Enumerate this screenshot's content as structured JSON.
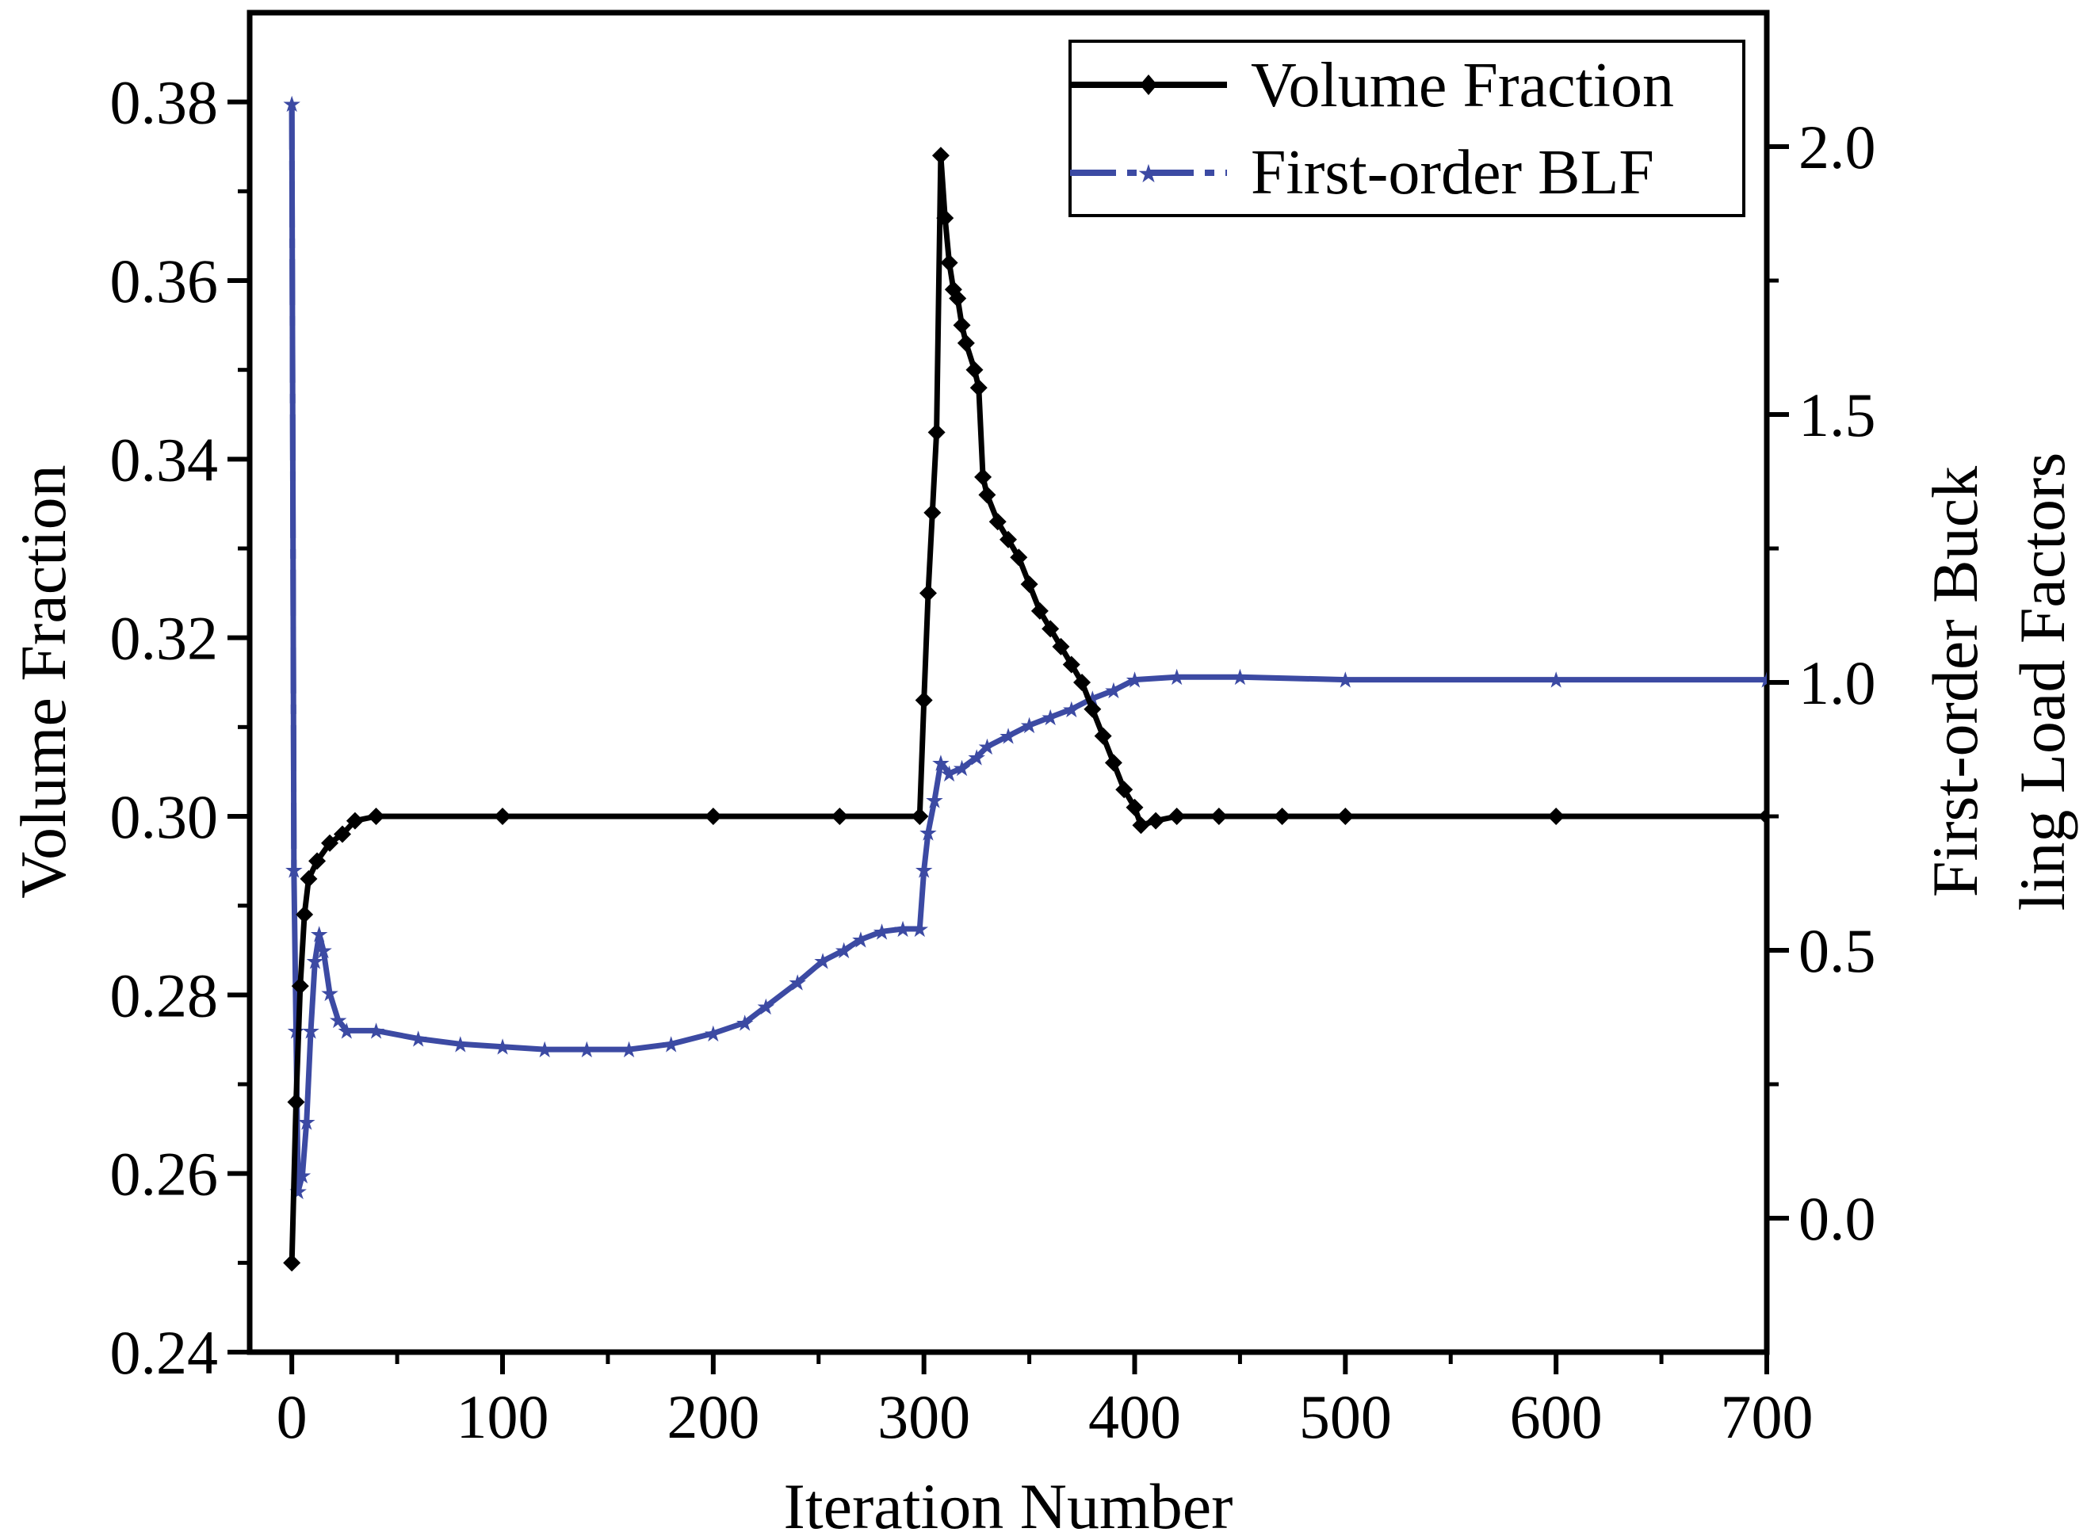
{
  "chart_data": {
    "type": "line",
    "title": "",
    "xlabel": "Iteration Number",
    "ylabel_left": "Volume Fraction",
    "ylabel_right": [
      "First-order Buck",
      "ling Load Factors"
    ],
    "xlim": [
      -20,
      700
    ],
    "ylim_left": [
      0.24,
      0.39
    ],
    "ylim_right": [
      -0.25,
      2.25
    ],
    "x_ticks": [
      0,
      100,
      200,
      300,
      400,
      500,
      600,
      700
    ],
    "y_left_ticks": [
      "0.24",
      "0.26",
      "0.28",
      "0.30",
      "0.32",
      "0.34",
      "0.36",
      "0.38"
    ],
    "y_right_ticks": [
      "0.0",
      "0.5",
      "1.0",
      "1.5",
      "2.0"
    ],
    "legend_position": "top-right",
    "series": [
      {
        "name": "Volume Fraction",
        "axis": "left",
        "color": "#000000",
        "marker": "diamond",
        "line_style": "solid",
        "points": [
          [
            0,
            0.25
          ],
          [
            2,
            0.268
          ],
          [
            4,
            0.281
          ],
          [
            6,
            0.289
          ],
          [
            8,
            0.293
          ],
          [
            12,
            0.295
          ],
          [
            18,
            0.297
          ],
          [
            24,
            0.298
          ],
          [
            30,
            0.2995
          ],
          [
            40,
            0.3
          ],
          [
            100,
            0.3
          ],
          [
            200,
            0.3
          ],
          [
            260,
            0.3
          ],
          [
            298,
            0.3
          ],
          [
            300,
            0.313
          ],
          [
            302,
            0.325
          ],
          [
            304,
            0.334
          ],
          [
            306,
            0.343
          ],
          [
            308,
            0.374
          ],
          [
            310,
            0.367
          ],
          [
            312,
            0.362
          ],
          [
            314,
            0.359
          ],
          [
            316,
            0.358
          ],
          [
            318,
            0.355
          ],
          [
            320,
            0.353
          ],
          [
            324,
            0.35
          ],
          [
            326,
            0.348
          ],
          [
            328,
            0.338
          ],
          [
            330,
            0.336
          ],
          [
            335,
            0.333
          ],
          [
            340,
            0.331
          ],
          [
            345,
            0.329
          ],
          [
            350,
            0.326
          ],
          [
            355,
            0.323
          ],
          [
            360,
            0.321
          ],
          [
            365,
            0.319
          ],
          [
            370,
            0.317
          ],
          [
            375,
            0.315
          ],
          [
            380,
            0.312
          ],
          [
            385,
            0.309
          ],
          [
            390,
            0.306
          ],
          [
            395,
            0.303
          ],
          [
            400,
            0.301
          ],
          [
            403,
            0.299
          ],
          [
            410,
            0.2995
          ],
          [
            420,
            0.3
          ],
          [
            440,
            0.3
          ],
          [
            470,
            0.3
          ],
          [
            500,
            0.3
          ],
          [
            600,
            0.3
          ],
          [
            700,
            0.3
          ]
        ]
      },
      {
        "name": "First-order BLF",
        "axis": "right",
        "color": "#3c4aa3",
        "marker": "star",
        "line_style": "dashdot",
        "points": [
          [
            0,
            2.08
          ],
          [
            1,
            0.65
          ],
          [
            2,
            0.35
          ],
          [
            3,
            0.05
          ],
          [
            5,
            0.08
          ],
          [
            7,
            0.18
          ],
          [
            9,
            0.35
          ],
          [
            11,
            0.48
          ],
          [
            13,
            0.53
          ],
          [
            15,
            0.5
          ],
          [
            18,
            0.42
          ],
          [
            22,
            0.37
          ],
          [
            26,
            0.35
          ],
          [
            40,
            0.35
          ],
          [
            60,
            0.335
          ],
          [
            80,
            0.325
          ],
          [
            100,
            0.32
          ],
          [
            120,
            0.315
          ],
          [
            140,
            0.315
          ],
          [
            160,
            0.315
          ],
          [
            180,
            0.325
          ],
          [
            200,
            0.345
          ],
          [
            215,
            0.365
          ],
          [
            225,
            0.395
          ],
          [
            240,
            0.44
          ],
          [
            252,
            0.48
          ],
          [
            262,
            0.5
          ],
          [
            270,
            0.52
          ],
          [
            280,
            0.535
          ],
          [
            290,
            0.54
          ],
          [
            298,
            0.54
          ],
          [
            300,
            0.65
          ],
          [
            302,
            0.72
          ],
          [
            305,
            0.78
          ],
          [
            308,
            0.85
          ],
          [
            312,
            0.83
          ],
          [
            318,
            0.84
          ],
          [
            325,
            0.86
          ],
          [
            330,
            0.88
          ],
          [
            340,
            0.9
          ],
          [
            350,
            0.92
          ],
          [
            360,
            0.935
          ],
          [
            370,
            0.95
          ],
          [
            380,
            0.97
          ],
          [
            390,
            0.985
          ],
          [
            400,
            1.005
          ],
          [
            420,
            1.01
          ],
          [
            450,
            1.01
          ],
          [
            500,
            1.005
          ],
          [
            600,
            1.005
          ],
          [
            700,
            1.005
          ]
        ]
      }
    ]
  }
}
